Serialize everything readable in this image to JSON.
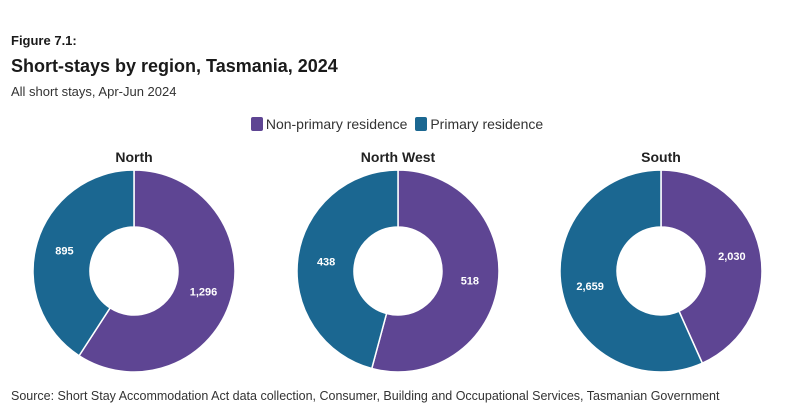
{
  "figure_label": "Figure 7.1:",
  "chart_data": {
    "type": "pie",
    "title": "Short-stays by region, Tasmania, 2024",
    "subtitle": "All short stays, Apr-Jun 2024",
    "legend": [
      {
        "name": "Non-primary residence",
        "color": "#5e4593"
      },
      {
        "name": "Primary residence",
        "color": "#1b6791"
      }
    ],
    "charts": [
      {
        "title": "North",
        "series": [
          {
            "name": "Non-primary residence",
            "value": 1296,
            "label": "1,296"
          },
          {
            "name": "Primary residence",
            "value": 895,
            "label": "895"
          }
        ]
      },
      {
        "title": "North West",
        "series": [
          {
            "name": "Non-primary residence",
            "value": 518,
            "label": "518"
          },
          {
            "name": "Primary residence",
            "value": 438,
            "label": "438"
          }
        ]
      },
      {
        "title": "South",
        "series": [
          {
            "name": "Non-primary residence",
            "value": 2030,
            "label": "2,030"
          },
          {
            "name": "Primary residence",
            "value": 2659,
            "label": "2,659"
          }
        ]
      }
    ],
    "source": "Source: Short Stay Accommodation Act data collection, Consumer, Building and Occupational Services, Tasmanian Government"
  }
}
